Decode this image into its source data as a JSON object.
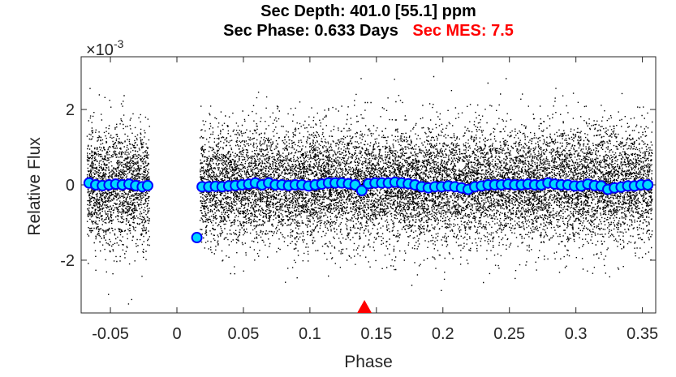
{
  "title": {
    "line1": "Sec Depth: 401.0 [55.1] ppm",
    "phase": "Sec Phase: 0.633 Days",
    "mes": "Sec MES: 7.5"
  },
  "chart_data": {
    "type": "scatter",
    "xlabel": "Phase",
    "ylabel": "Relative Flux",
    "y_exponent_label": "×10",
    "y_exponent_power": "-3",
    "xlim": [
      -0.072,
      0.36
    ],
    "ylim": [
      -0.0034,
      0.0034
    ],
    "x_ticks": [
      -0.05,
      0,
      0.05,
      0.1,
      0.15,
      0.2,
      0.25,
      0.3,
      0.35
    ],
    "x_tick_labels": [
      "-0.05",
      "0",
      "0.05",
      "0.1",
      "0.15",
      "0.2",
      "0.25",
      "0.3",
      "0.35"
    ],
    "y_ticks": [
      -0.002,
      0,
      0.002
    ],
    "y_tick_labels": [
      "-2",
      "0",
      "2"
    ],
    "raw_points": {
      "description_color": "#000000",
      "segments": [
        [
          -0.068,
          -0.021
        ],
        [
          0.017,
          0.357
        ]
      ],
      "scatter_sigma": 0.00075
    },
    "binned": {
      "color_fill": "#00d8ff",
      "color_edge": "#0000ff",
      "x": [
        -0.066,
        -0.061,
        -0.056,
        -0.051,
        -0.046,
        -0.041,
        -0.036,
        -0.031,
        -0.026,
        -0.022,
        0.015,
        0.019,
        0.024,
        0.029,
        0.034,
        0.039,
        0.044,
        0.049,
        0.054,
        0.059,
        0.064,
        0.069,
        0.074,
        0.079,
        0.084,
        0.089,
        0.094,
        0.099,
        0.104,
        0.109,
        0.114,
        0.119,
        0.124,
        0.129,
        0.134,
        0.139,
        0.144,
        0.149,
        0.154,
        0.159,
        0.164,
        0.169,
        0.174,
        0.179,
        0.184,
        0.189,
        0.194,
        0.199,
        0.204,
        0.209,
        0.214,
        0.219,
        0.224,
        0.229,
        0.234,
        0.239,
        0.244,
        0.249,
        0.254,
        0.259,
        0.264,
        0.269,
        0.274,
        0.279,
        0.284,
        0.289,
        0.294,
        0.299,
        0.304,
        0.309,
        0.314,
        0.319,
        0.324,
        0.329,
        0.334,
        0.339,
        0.344,
        0.349,
        0.354
      ],
      "y": [
        5e-05,
        0.0,
        -2e-05,
        0.0,
        2e-05,
        0.0,
        2e-05,
        -2e-05,
        -5e-05,
        -2e-05,
        -0.0014,
        -5e-05,
        -5e-05,
        -4e-05,
        -5e-05,
        -3e-05,
        -2e-05,
        0.0,
        2e-05,
        5e-05,
        0.0,
        5e-05,
        0.0,
        0.0,
        -2e-05,
        0.0,
        0.0,
        -3e-05,
        0.0,
        2e-05,
        5e-05,
        5e-05,
        5e-05,
        3e-05,
        0.0,
        -0.00015,
        3e-05,
        5e-05,
        5e-05,
        5e-05,
        7e-05,
        5e-05,
        3e-05,
        0.0,
        -5e-05,
        -8e-05,
        -5e-05,
        -5e-05,
        -3e-05,
        -5e-05,
        -8e-05,
        -0.00012,
        -5e-05,
        -3e-05,
        0.0,
        0.0,
        0.0,
        2e-05,
        0.0,
        0.0,
        2e-05,
        0.0,
        0.0,
        5e-05,
        2e-05,
        0.0,
        0.0,
        -3e-05,
        -3e-05,
        2e-05,
        -2e-05,
        -3e-05,
        -0.00012,
        -8e-05,
        -6e-05,
        -3e-05,
        -3e-05,
        0.0,
        0.0
      ]
    },
    "marker": {
      "type": "triangle",
      "x": 0.141,
      "color": "#ff0000"
    }
  }
}
